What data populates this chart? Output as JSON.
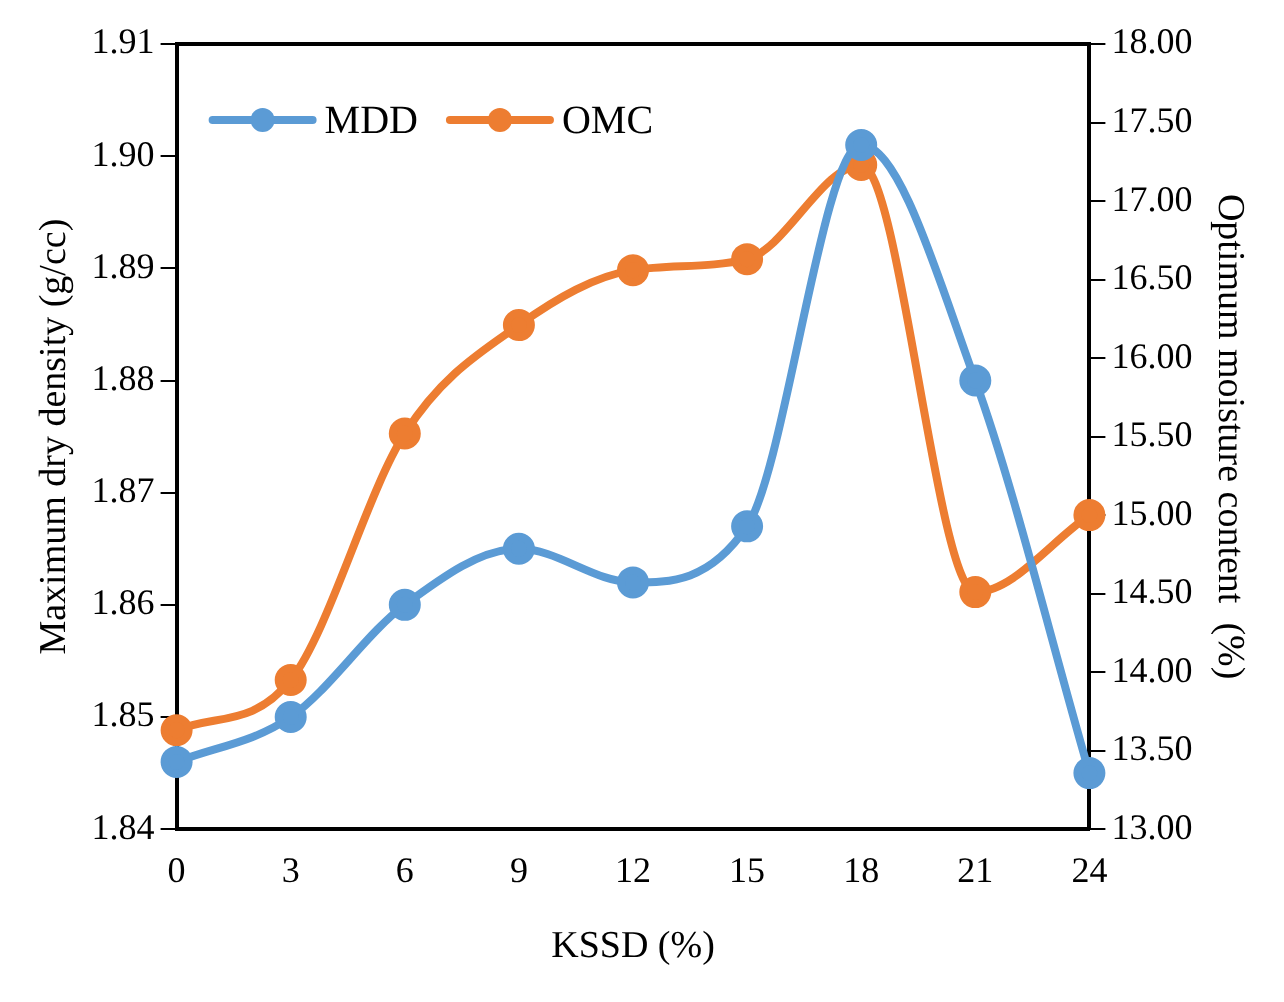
{
  "chart_data": {
    "type": "line",
    "xlabel": "KSSD (%)",
    "ylabel": "Maximum dry density (g/cc)",
    "y2label": "Optimum moisture content  (%)",
    "categories": [
      "0",
      "3",
      "6",
      "9",
      "12",
      "15",
      "18",
      "21",
      "24"
    ],
    "series": [
      {
        "name": "MDD",
        "color": "#5b9bd5",
        "values": [
          1.846,
          1.85,
          1.86,
          1.865,
          1.862,
          1.867,
          1.901,
          1.88,
          1.845
        ]
      },
      {
        "name": "OMC",
        "color": "#ed7d31",
        "axis": "y2",
        "values": [
          13.63,
          13.95,
          15.52,
          16.21,
          16.56,
          16.63,
          17.23,
          14.51,
          15.0
        ]
      }
    ],
    "ylim": [
      1.84,
      1.91
    ],
    "yticks": [
      {
        "value": 1.84,
        "label": "1.84"
      },
      {
        "value": 1.85,
        "label": "1.85"
      },
      {
        "value": 1.86,
        "label": "1.86"
      },
      {
        "value": 1.87,
        "label": "1.87"
      },
      {
        "value": 1.88,
        "label": "1.88"
      },
      {
        "value": 1.89,
        "label": "1.89"
      },
      {
        "value": 1.9,
        "label": "1.90"
      },
      {
        "value": 1.91,
        "label": "1.91"
      }
    ],
    "y2lim": [
      13,
      18
    ],
    "y2ticks": [
      {
        "value": 13,
        "label": "13.00"
      },
      {
        "value": 13.5,
        "label": "13.50"
      },
      {
        "value": 14,
        "label": "14.00"
      },
      {
        "value": 14.5,
        "label": "14.50"
      },
      {
        "value": 15,
        "label": "15.00"
      },
      {
        "value": 15.5,
        "label": "15.50"
      },
      {
        "value": 16,
        "label": "16.00"
      },
      {
        "value": 16.5,
        "label": "16.50"
      },
      {
        "value": 17,
        "label": "17.00"
      },
      {
        "value": 17.5,
        "label": "17.50"
      },
      {
        "value": 18,
        "label": "18.00"
      }
    ],
    "grid": false,
    "legend": "top left",
    "marker": "circle",
    "line_style": "solid"
  }
}
